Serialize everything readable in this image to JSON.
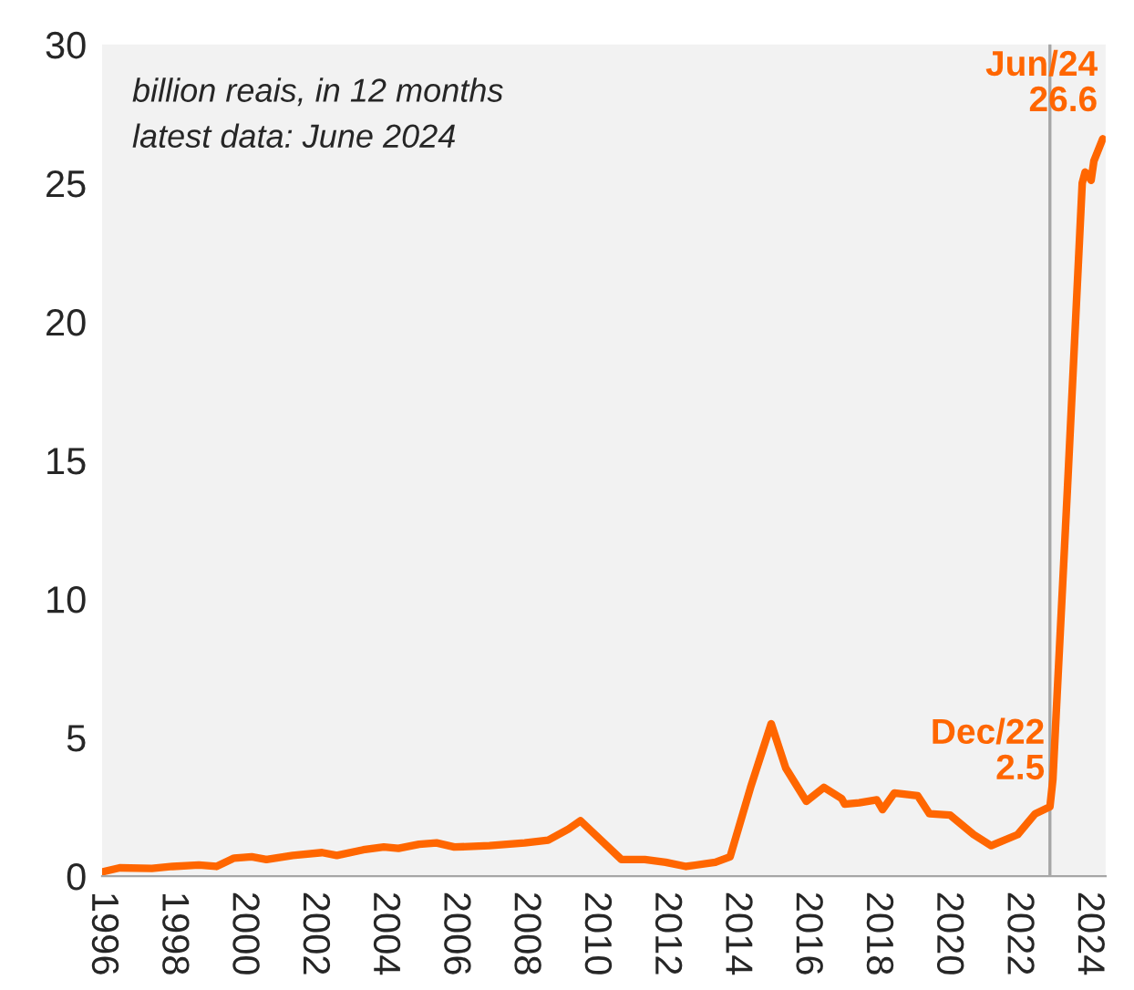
{
  "chart_data": {
    "type": "line",
    "x": [
      "1996-01",
      "1996-07",
      "1997-06",
      "1998-01",
      "1998-10",
      "1999-04",
      "1999-10",
      "2000-04",
      "2000-09",
      "2001-06",
      "2002-04",
      "2002-09",
      "2003-06",
      "2004-01",
      "2004-06",
      "2005-01",
      "2005-07",
      "2006-01",
      "2007-01",
      "2008-01",
      "2008-09",
      "2009-04",
      "2009-08",
      "2010-10",
      "2011-06",
      "2012-01",
      "2012-08",
      "2013-06",
      "2013-11",
      "2014-06",
      "2015-01",
      "2015-06",
      "2016-01",
      "2016-07",
      "2017-01",
      "2017-02",
      "2017-07",
      "2018-01",
      "2018-03",
      "2018-07",
      "2019-03",
      "2019-07",
      "2020-02",
      "2020-10",
      "2021-04",
      "2022-01",
      "2022-07",
      "2022-12",
      "2023-01",
      "2023-06",
      "2023-11",
      "2023-12",
      "2024-01",
      "2024-02",
      "2024-03",
      "2024-06"
    ],
    "series": [
      {
        "color": "#ff6600",
        "values": [
          0.15,
          0.3,
          0.28,
          0.35,
          0.4,
          0.35,
          0.65,
          0.7,
          0.6,
          0.75,
          0.85,
          0.75,
          0.95,
          1.05,
          1.0,
          1.15,
          1.2,
          1.05,
          1.1,
          1.2,
          1.3,
          1.7,
          2.0,
          0.6,
          0.6,
          0.5,
          0.35,
          0.5,
          0.7,
          3.2,
          5.5,
          3.9,
          2.7,
          3.2,
          2.8,
          2.6,
          2.65,
          2.75,
          2.4,
          3.0,
          2.9,
          2.25,
          2.2,
          1.5,
          1.1,
          1.5,
          2.25,
          2.5,
          3.5,
          14,
          25.0,
          25.4,
          25.3,
          25.1,
          25.8,
          26.6
        ]
      }
    ],
    "ylim": [
      0,
      30
    ],
    "yticks": [
      0,
      5,
      10,
      15,
      20,
      25,
      30
    ],
    "xlim": [
      "1996-01",
      "2024-07"
    ],
    "xticks": [
      "1996",
      "1998",
      "2000",
      "2002",
      "2004",
      "2006",
      "2008",
      "2010",
      "2012",
      "2014",
      "2016",
      "2018",
      "2020",
      "2022",
      "2024"
    ],
    "grid": false,
    "legend": false,
    "marker": "none",
    "line_style": "solid",
    "ref_lines": [
      {
        "axis": "x",
        "value": "2022-12",
        "label": null,
        "color": "#a6a6a6"
      }
    ],
    "annotations": [
      "billion reais, in 12 months",
      "latest data: June 2024",
      {
        "text": "Dec/22\n2.5",
        "x": "2022-12",
        "y": 2.5
      },
      {
        "text": "Jun/24\n26.6",
        "x": "2024-06",
        "y": 26.6
      }
    ]
  }
}
